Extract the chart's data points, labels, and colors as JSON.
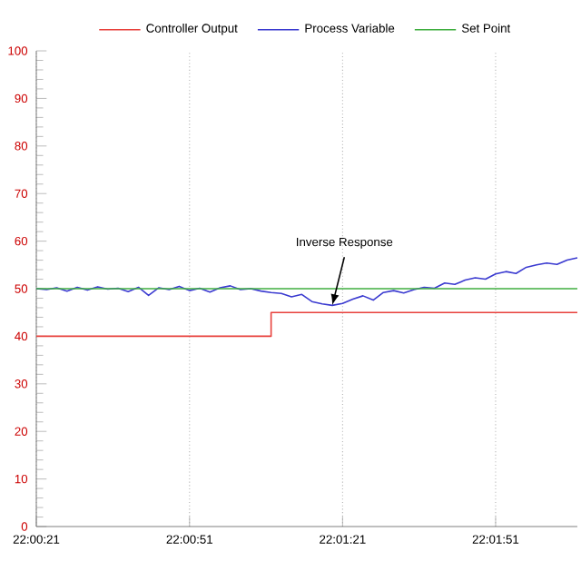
{
  "chart_data": {
    "type": "line",
    "series": [
      {
        "name": "Controller Output",
        "color": "#e8413c",
        "x": [
          22.00583,
          22.01861,
          22.01861,
          22.03528
        ],
        "values": [
          40,
          40,
          45,
          45
        ]
      },
      {
        "name": "Process Variable",
        "color": "#3a3ad0",
        "x": [
          22.00583,
          22.00639,
          22.00694,
          22.0075,
          22.00806,
          22.00861,
          22.00917,
          22.00972,
          22.01028,
          22.01083,
          22.01139,
          22.01194,
          22.0125,
          22.01306,
          22.01361,
          22.01417,
          22.01472,
          22.01528,
          22.01583,
          22.01639,
          22.01694,
          22.0175,
          22.01806,
          22.01861,
          22.01917,
          22.01972,
          22.02028,
          22.02083,
          22.02139,
          22.02194,
          22.0225,
          22.02306,
          22.02361,
          22.02417,
          22.02472,
          22.02528,
          22.02583,
          22.02639,
          22.02694,
          22.0275,
          22.02806,
          22.02861,
          22.02917,
          22.02972,
          22.03028,
          22.03083,
          22.03139,
          22.03194,
          22.0325,
          22.03306,
          22.03361,
          22.03417,
          22.03472,
          22.03528
        ],
        "values": [
          50,
          49.8,
          50.2,
          49.5,
          50.3,
          49.7,
          50.4,
          49.9,
          50.1,
          49.4,
          50.3,
          48.6,
          50.2,
          49.8,
          50.5,
          49.6,
          50.1,
          49.3,
          50.2,
          50.6,
          49.8,
          50,
          49.5,
          49.2,
          49,
          48.3,
          48.8,
          47.3,
          46.8,
          46.5,
          46.9,
          47.8,
          48.5,
          47.6,
          49.2,
          49.6,
          49.1,
          49.8,
          50.3,
          50.1,
          51.2,
          50.9,
          51.8,
          52.3,
          52,
          53.1,
          53.6,
          53.2,
          54.5,
          55,
          55.4,
          55.1,
          56,
          56.5
        ]
      },
      {
        "name": "Set Point",
        "color": "#3fae3f",
        "x": [
          22.00583,
          22.03528
        ],
        "values": [
          50,
          50
        ]
      }
    ],
    "xlim": [
      22.00583,
      22.03528
    ],
    "xticks": [
      {
        "value": 22.00583,
        "label": "22:00:21"
      },
      {
        "value": 22.01417,
        "label": "22:00:51"
      },
      {
        "value": 22.0225,
        "label": "22:01:21"
      },
      {
        "value": 22.03083,
        "label": "22:01:51"
      }
    ],
    "ylim": [
      0,
      100
    ],
    "yticks": [
      0,
      10,
      20,
      30,
      40,
      50,
      60,
      70,
      80,
      90,
      100
    ],
    "grid": "x",
    "legend": "top",
    "annotations": [
      {
        "text": "Inverse Response",
        "x": 22.02194,
        "y": 46.5
      }
    ]
  }
}
